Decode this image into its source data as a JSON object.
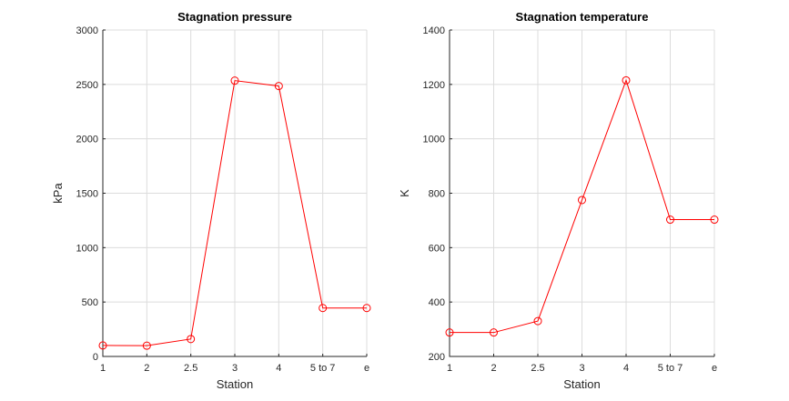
{
  "chart_data": [
    {
      "type": "line",
      "title": "Stagnation pressure",
      "xlabel": "Station",
      "ylabel": "kPa",
      "categories": [
        "1",
        "2",
        "2.5",
        "3",
        "4",
        "5 to 7",
        "e"
      ],
      "ylim": [
        0,
        3000
      ],
      "yticks": [
        0,
        500,
        1000,
        1500,
        2000,
        2500,
        3000
      ],
      "grid": true,
      "series": [
        {
          "values": [
            101,
            99,
            160,
            2535,
            2485,
            445,
            445
          ],
          "color": "#ff0000",
          "marker": "circle"
        }
      ]
    },
    {
      "type": "line",
      "title": "Stagnation temperature",
      "xlabel": "Station",
      "ylabel": "K",
      "categories": [
        "1",
        "2",
        "2.5",
        "3",
        "4",
        "5 to 7",
        "e"
      ],
      "ylim": [
        200,
        1400
      ],
      "yticks": [
        200,
        400,
        600,
        800,
        1000,
        1200,
        1400
      ],
      "grid": true,
      "series": [
        {
          "values": [
            288,
            288,
            330,
            775,
            1215,
            703,
            703
          ],
          "color": "#ff0000",
          "marker": "circle"
        }
      ]
    }
  ]
}
